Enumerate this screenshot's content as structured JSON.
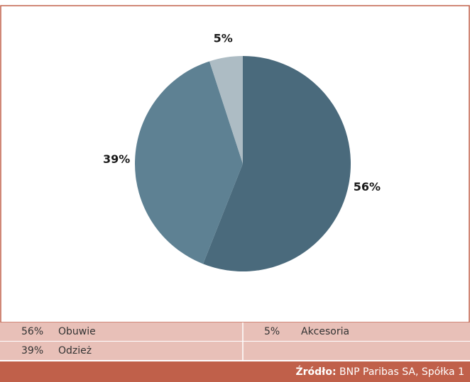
{
  "chart_data": {
    "type": "pie",
    "categories": [
      "Obuwie",
      "Odzież",
      "Akcesoria"
    ],
    "values": [
      56,
      39,
      5
    ],
    "value_labels": [
      "56%",
      "39%",
      "5%"
    ],
    "colors": [
      "#4a6a7c",
      "#5e8193",
      "#adbcc4"
    ],
    "source_label": "Źródło:",
    "source": "BNP Paribas SA, Spółka 1"
  }
}
